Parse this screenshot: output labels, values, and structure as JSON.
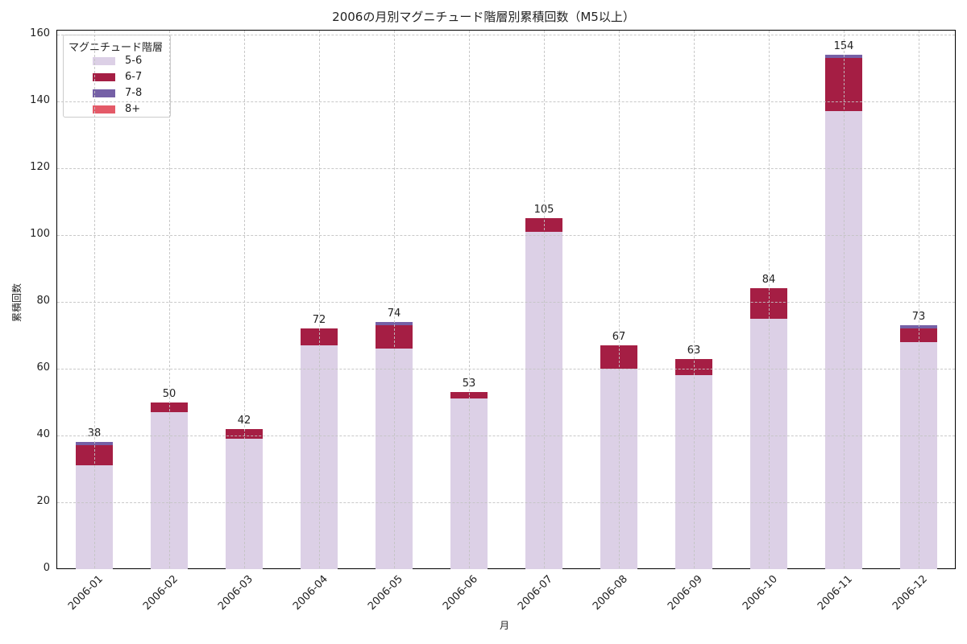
{
  "chart_data": {
    "type": "bar",
    "stacked": true,
    "title": "2006の月別マグニチュード階層別累積回数（M5以上）",
    "xlabel": "月",
    "ylabel": "累積回数",
    "ylim": [
      0,
      160
    ],
    "yticks": [
      0,
      20,
      40,
      60,
      80,
      100,
      120,
      140,
      160
    ],
    "grid": true,
    "legend_title": "マグニチュード階層",
    "legend_position": "upper left",
    "categories": [
      "2006-01",
      "2006-02",
      "2006-03",
      "2006-04",
      "2006-05",
      "2006-06",
      "2006-07",
      "2006-08",
      "2006-09",
      "2006-10",
      "2006-11",
      "2006-12"
    ],
    "series": [
      {
        "name": "5-6",
        "color": "#dcd0e6",
        "values": [
          31,
          47,
          39,
          67,
          66,
          51,
          101,
          60,
          58,
          75,
          137,
          68
        ]
      },
      {
        "name": "6-7",
        "color": "#a51e44",
        "values": [
          6,
          3,
          3,
          5,
          7,
          2,
          4,
          7,
          5,
          9,
          16,
          4
        ]
      },
      {
        "name": "7-8",
        "color": "#7560a6",
        "values": [
          1,
          0,
          0,
          0,
          1,
          0,
          0,
          0,
          0,
          0,
          1,
          1
        ]
      },
      {
        "name": "8+",
        "color": "#e45a68",
        "values": [
          0,
          0,
          0,
          0,
          0,
          0,
          0,
          0,
          0,
          0,
          0,
          0
        ]
      }
    ],
    "totals": [
      38,
      50,
      42,
      72,
      74,
      53,
      105,
      67,
      63,
      84,
      154,
      73
    ]
  }
}
